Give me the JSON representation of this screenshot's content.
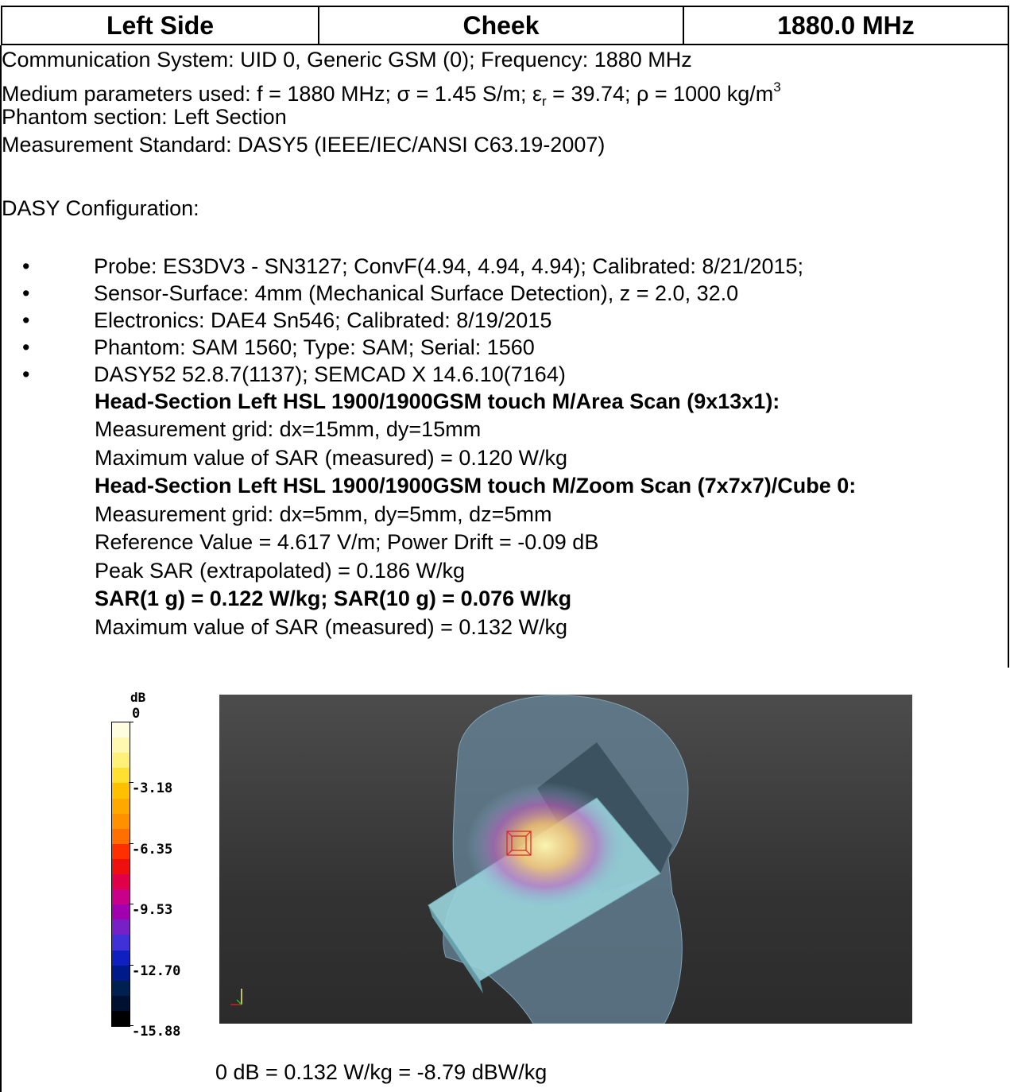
{
  "header": {
    "col1": "Left Side",
    "col2": "Cheek",
    "col3": "1880.0 MHz"
  },
  "info": {
    "communication": "Communication System: UID 0, Generic GSM (0); Frequency: 1880 MHz",
    "medium_a": "Medium parameters used: f = 1880 MHz; σ = 1.45 S/m; ε",
    "medium_sub": "r",
    "medium_b": " = 39.74; ρ = 1000 kg/m",
    "medium_sup": "3",
    "phantom_section": "Phantom section: Left Section",
    "standard": "Measurement Standard: DASY5 (IEEE/IEC/ANSI C63.19-2007)",
    "dasy_config": "DASY Configuration:"
  },
  "bullets": [
    "Probe: ES3DV3 - SN3127; ConvF(4.94, 4.94, 4.94); Calibrated: 8/21/2015;",
    "Sensor-Surface: 4mm (Mechanical Surface Detection), z = 2.0, 32.0",
    "Electronics: DAE4 Sn546; Calibrated: 8/19/2015",
    "Phantom: SAM 1560; Type: SAM; Serial: 1560",
    "DASY52 52.8.7(1137); SEMCAD X 14.6.10(7164)"
  ],
  "scan": {
    "area_title": "Head-Section Left HSL 1900/1900GSM touch M/Area Scan (9x13x1):",
    "area_grid": "Measurement grid: dx=15mm, dy=15mm",
    "area_max": "Maximum value of SAR (measured) = 0.120 W/kg",
    "zoom_title": "Head-Section Left HSL 1900/1900GSM touch M/Zoom Scan (7x7x7)/Cube 0:",
    "zoom_grid": "Measurement grid: dx=5mm, dy=5mm, dz=5mm",
    "reference": "Reference Value = 4.617 V/m; Power Drift = -0.09 dB",
    "peak": "Peak SAR (extrapolated) = 0.186 W/kg",
    "sar": "SAR(1 g) = 0.122 W/kg; SAR(10 g) = 0.076 W/kg",
    "zoom_max": "Maximum value of SAR (measured) = 0.132 W/kg"
  },
  "color_scale": {
    "unit": "dB",
    "labels": [
      "0",
      "-3.18",
      "-6.35",
      "-9.53",
      "-12.70",
      "-15.88"
    ],
    "colors": [
      "#fffde0",
      "#fff8b0",
      "#fff07a",
      "#ffe030",
      "#ffc000",
      "#ffa800",
      "#ff9000",
      "#ff7000",
      "#ff3000",
      "#ee1010",
      "#e0004a",
      "#c8008a",
      "#a000b0",
      "#7820c8",
      "#4030d8",
      "#1020c0",
      "#001a8a",
      "#002050",
      "#001030",
      "#000000"
    ]
  },
  "caption": "0 dB = 0.132 W/kg = -8.79 dBW/kg"
}
